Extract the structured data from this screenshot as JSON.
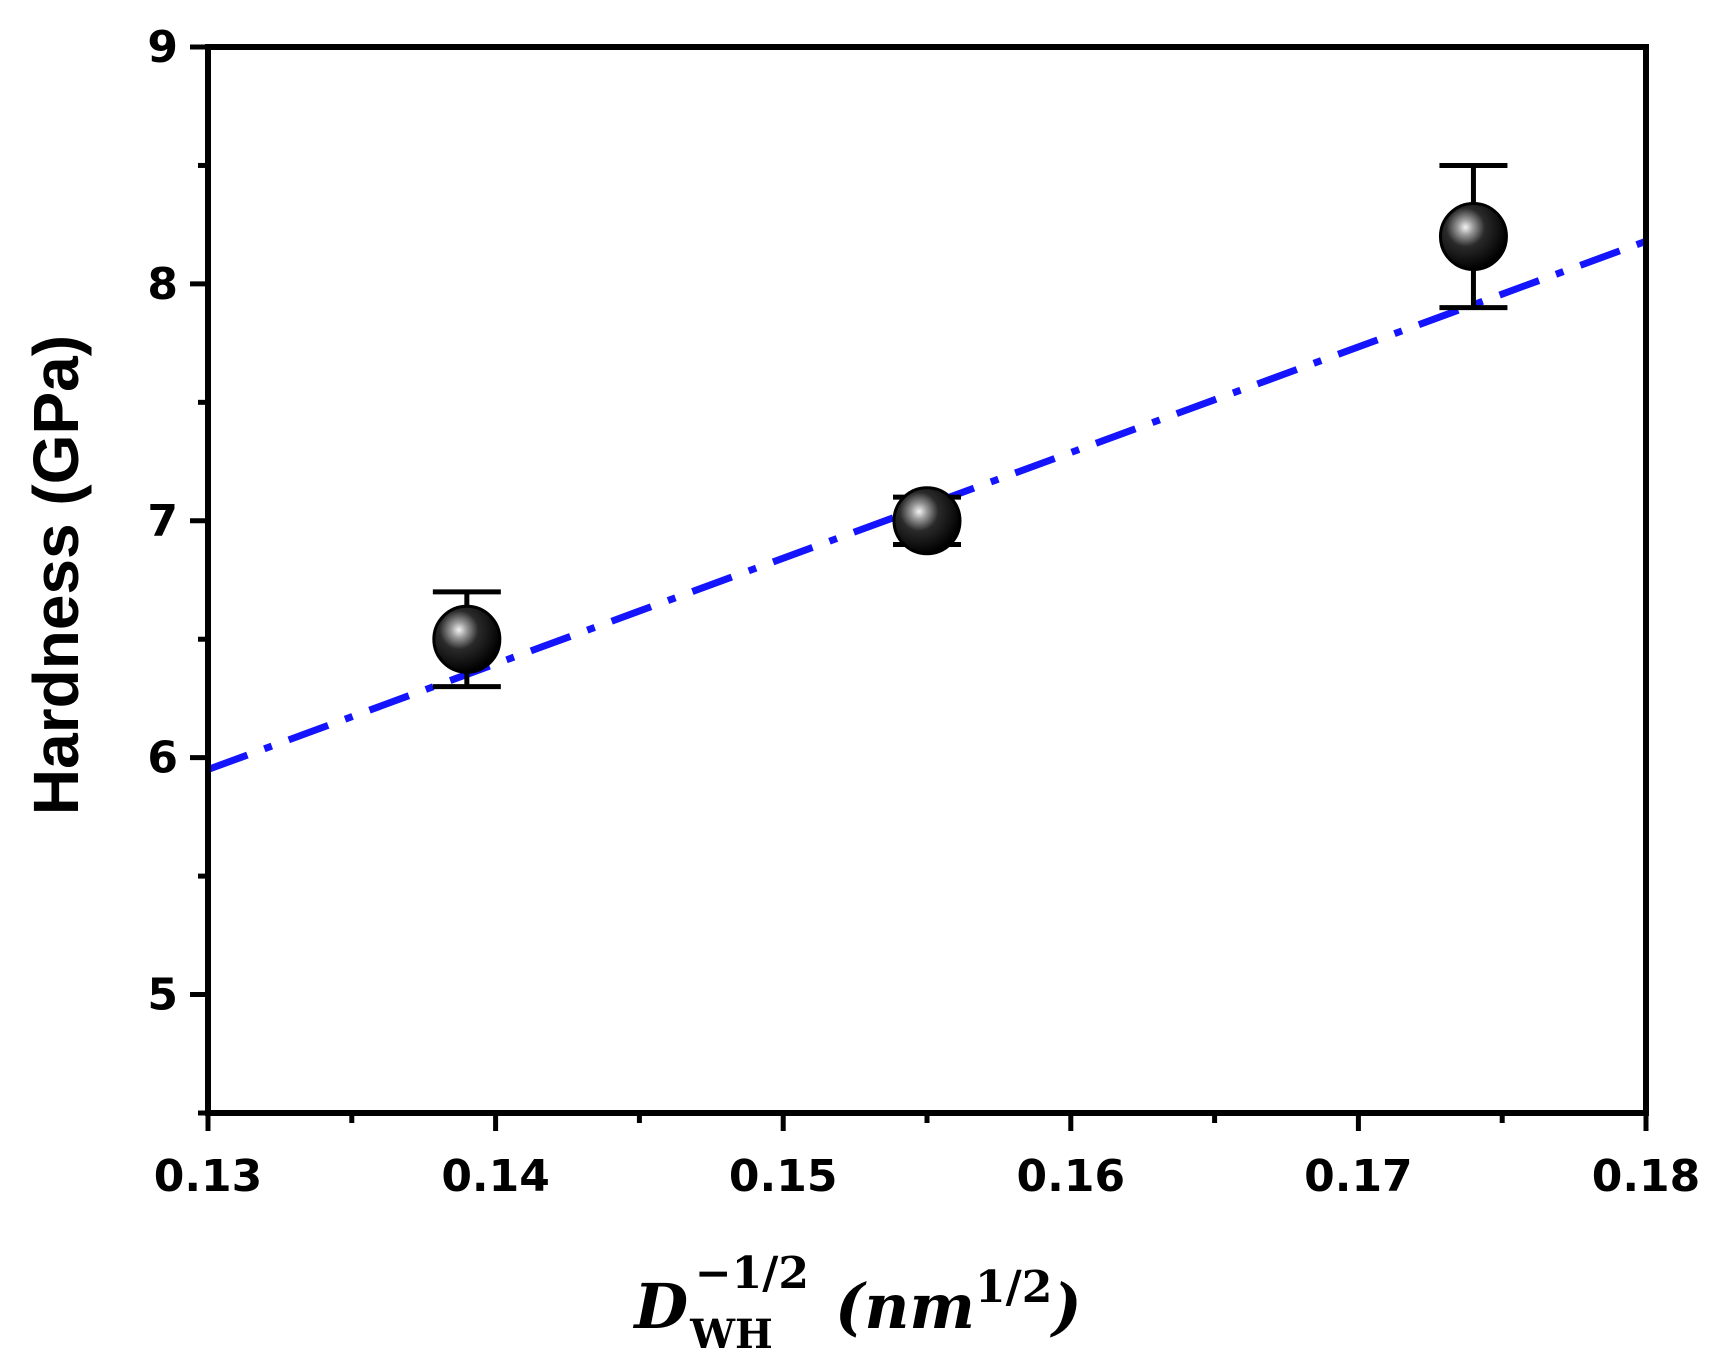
{
  "chart_data": {
    "type": "scatter",
    "title": "",
    "ylabel": "Hardness (GPa)",
    "xlabel": {
      "symbol": "D",
      "subscript": "WH",
      "superscript": "−1/2",
      "unit_open": "(",
      "unit": "nm",
      "unit_exp": "1/2",
      "unit_close": ")"
    },
    "xlim": [
      0.13,
      0.18
    ],
    "ylim": [
      4.5,
      9
    ],
    "x_ticks": [
      0.13,
      0.14,
      0.15,
      0.16,
      0.17,
      0.18
    ],
    "x_tick_labels": [
      "0.13",
      "0.14",
      "0.15",
      "0.16",
      "0.17",
      "0.18"
    ],
    "x_minor_ticks": [
      0.135,
      0.145,
      0.155,
      0.165,
      0.175
    ],
    "y_ticks": [
      5,
      6,
      7,
      8,
      9
    ],
    "y_tick_labels": [
      "5",
      "6",
      "7",
      "8",
      "9"
    ],
    "y_minor_ticks": [
      4.5,
      5.5,
      6.5,
      7.5,
      8.5
    ],
    "series": [
      {
        "name": "Hardness",
        "x": [
          0.139,
          0.155,
          0.174
        ],
        "y": [
          6.5,
          7.0,
          8.2
        ],
        "err": [
          0.2,
          0.1,
          0.3
        ],
        "color": "#000000"
      }
    ],
    "fit_line": {
      "style": "dash-dot",
      "color": "#1414ff",
      "x": [
        0.13,
        0.18
      ],
      "y": [
        5.95,
        8.18
      ]
    },
    "grid": false,
    "legend": "none"
  }
}
